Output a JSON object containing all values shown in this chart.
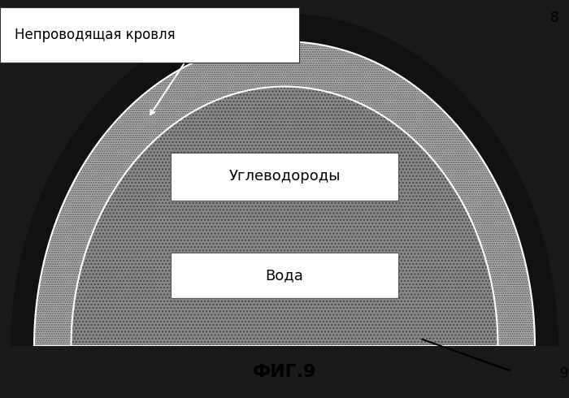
{
  "bg_color": "#1a1a1a",
  "outer_r": 0.88,
  "shell_thickness": 0.13,
  "shell_color": "#aaaaaa",
  "inner_color": "#7a7a7a",
  "label_cap_rock": "Непроводящая кровля",
  "label_hydrocarbons": "Углеводороды",
  "label_water": "Вода",
  "label_fig": "ФИГ.9",
  "label_8": "8",
  "label_9": "9",
  "fig_fontsize": 16,
  "text_fontsize": 13,
  "label_fontsize": 12
}
